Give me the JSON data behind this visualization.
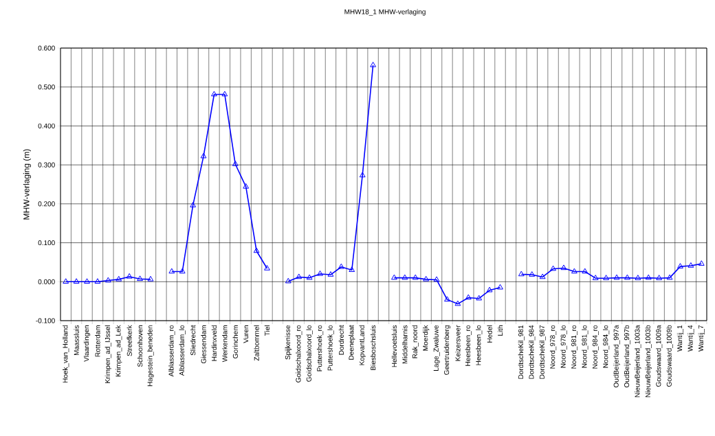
{
  "chart_data": {
    "type": "line",
    "title": "MHW18_1 MHW-verlaging",
    "ylabel": "MHW-verlaging (m)",
    "categories": [
      "Hoek_van_Holland",
      "Maassluis",
      "Vlaardingen",
      "Rotterdam",
      "Krimpen_ad_IJssel",
      "Krimpen_ad_Lek",
      "Streefkerk",
      "Schoonhoven",
      "Hagestein_beneden",
      null,
      "Alblasserdam_ro",
      "Alblasserdam_lo",
      "Sliedrecht",
      "Giessendam",
      "Hardinxveld",
      "Werkendam",
      "Gorinchem",
      "Vuren",
      "Zaltbommel",
      "Tiel",
      null,
      "Spijkenisse",
      "Goidschalxoord_ro",
      "Goidschalxoord_lo",
      "Puttershoek_ro",
      "Puttershoek_lo",
      "Dordrecht",
      "Deeneplaat",
      "KopvantLand",
      "Biesboschsluis",
      null,
      "Hellevoetsluis",
      "Middelharnis",
      "Rak_noord",
      "Moerdijk",
      "Lage_Zwaluwe",
      "Geertruidenberg",
      "Keizersveer",
      "Heesbeen_ro",
      "Heesbeen_lo",
      "Hedel",
      "Lith",
      null,
      "DordtscheKil_981",
      "DordtscheKil_984",
      "DordtscheKil_987",
      "Noord_978_ro",
      "Noord_978_lo",
      "Noord_981_ro",
      "Noord_981_lo",
      "Noord_984_ro",
      "Noord_984_lo",
      "OudBeijerland_997a",
      "OudBeijerland_997b",
      "NieuwBeijerland_1003a",
      "NieuwBeijerland_1003b",
      "Goudswaard_1009a",
      "Goudswaard_1009b",
      "Wantij_1",
      "Wantij_4",
      "Wantij_7"
    ],
    "series": [
      {
        "color": "#0000ff",
        "values": [
          0,
          0,
          0,
          0,
          0.003,
          0.006,
          0.013,
          0.007,
          0.006,
          null,
          0.026,
          0.026,
          0.196,
          0.322,
          0.481,
          0.481,
          0.302,
          0.244,
          0.079,
          0.034,
          null,
          0.001,
          0.012,
          0.01,
          0.02,
          0.018,
          0.038,
          0.03,
          0.273,
          0.556,
          null,
          0.01,
          0.01,
          0.01,
          0.006,
          0.005,
          -0.046,
          -0.057,
          -0.041,
          -0.043,
          -0.022,
          -0.015,
          null,
          0.019,
          0.018,
          0.012,
          0.033,
          0.035,
          0.026,
          0.026,
          0.009,
          0.009,
          0.01,
          0.01,
          0.009,
          0.01,
          0.009,
          0.01,
          0.039,
          0.041,
          0.046
        ]
      }
    ],
    "ylim": [
      -0.1,
      0.6
    ],
    "yticks": [
      {
        "value": -0.1,
        "label": "-0.100"
      },
      {
        "value": 0,
        "label": "0.000"
      },
      {
        "value": 0.1,
        "label": "0.100"
      },
      {
        "value": 0.2,
        "label": "0.200"
      },
      {
        "value": 0.3,
        "label": "0.300"
      },
      {
        "value": 0.4,
        "label": "0.400"
      },
      {
        "value": 0.5,
        "label": "0.500"
      },
      {
        "value": 0.6,
        "label": "0.600"
      }
    ],
    "grid": true,
    "marker": "triangle",
    "line_style": "solid"
  }
}
